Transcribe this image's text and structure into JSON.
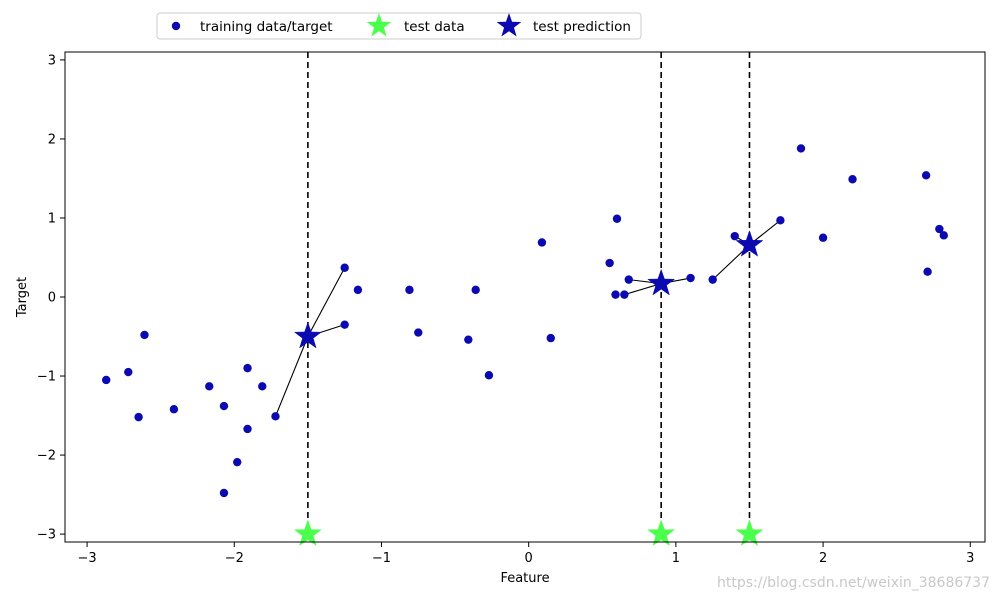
{
  "chart_data": {
    "type": "scatter",
    "xlabel": "Feature",
    "ylabel": "Target",
    "xlim": [
      -3.15,
      3.1
    ],
    "ylim": [
      -3.1,
      3.1
    ],
    "x_ticks": [
      {
        "value": -3,
        "label": "−3"
      },
      {
        "value": -2,
        "label": "−2"
      },
      {
        "value": -1,
        "label": "−1"
      },
      {
        "value": 0,
        "label": "0"
      },
      {
        "value": 1,
        "label": "1"
      },
      {
        "value": 2,
        "label": "2"
      },
      {
        "value": 3,
        "label": "3"
      }
    ],
    "y_ticks": [
      {
        "value": -3,
        "label": "−3"
      },
      {
        "value": -2,
        "label": "−2"
      },
      {
        "value": -1,
        "label": "−1"
      },
      {
        "value": 0,
        "label": "0"
      },
      {
        "value": 1,
        "label": "1"
      },
      {
        "value": 2,
        "label": "2"
      },
      {
        "value": 3,
        "label": "3"
      }
    ],
    "grid": false,
    "legend": {
      "placement": "top-center",
      "entries": [
        "training data/target",
        "test data",
        "test prediction"
      ]
    },
    "colors": {
      "training": "#0a0ab0",
      "test_data": "#4dff4d",
      "test_prediction": "#0a0ab0",
      "lines": "#000000"
    },
    "series": [
      {
        "name": "training data/target",
        "marker": "circle",
        "points": [
          [
            -2.87,
            -1.05
          ],
          [
            -2.72,
            -0.95
          ],
          [
            -2.65,
            -1.52
          ],
          [
            -2.61,
            -0.48
          ],
          [
            -2.41,
            -1.42
          ],
          [
            -2.17,
            -1.13
          ],
          [
            -2.07,
            -1.38
          ],
          [
            -2.07,
            -2.48
          ],
          [
            -1.98,
            -2.09
          ],
          [
            -1.91,
            -0.9
          ],
          [
            -1.91,
            -1.67
          ],
          [
            -1.81,
            -1.13
          ],
          [
            -1.72,
            -1.51
          ],
          [
            -1.25,
            0.37
          ],
          [
            -1.25,
            -0.35
          ],
          [
            -1.16,
            0.09
          ],
          [
            -0.81,
            0.09
          ],
          [
            -0.75,
            -0.45
          ],
          [
            -0.41,
            -0.54
          ],
          [
            -0.36,
            0.09
          ],
          [
            -0.27,
            -0.99
          ],
          [
            0.09,
            0.69
          ],
          [
            0.15,
            -0.52
          ],
          [
            0.55,
            0.43
          ],
          [
            0.59,
            0.03
          ],
          [
            0.6,
            0.99
          ],
          [
            0.65,
            0.03
          ],
          [
            0.68,
            0.22
          ],
          [
            1.1,
            0.24
          ],
          [
            1.25,
            0.22
          ],
          [
            1.4,
            0.77
          ],
          [
            1.71,
            0.97
          ],
          [
            1.85,
            1.88
          ],
          [
            2.0,
            0.75
          ],
          [
            2.2,
            1.49
          ],
          [
            2.7,
            1.54
          ],
          [
            2.71,
            0.32
          ],
          [
            2.79,
            0.86
          ],
          [
            2.82,
            0.78
          ]
        ]
      },
      {
        "name": "test data",
        "marker": "star",
        "points": [
          [
            -1.5,
            -3.0
          ],
          [
            0.9,
            -3.0
          ],
          [
            1.5,
            -3.0
          ]
        ]
      },
      {
        "name": "test prediction",
        "marker": "star",
        "points": [
          [
            -1.5,
            -0.5
          ],
          [
            0.9,
            0.17
          ],
          [
            1.5,
            0.66
          ]
        ]
      }
    ],
    "vertical_lines_x": [
      -1.5,
      0.9,
      1.5
    ],
    "neighbor_links": [
      {
        "from": [
          -1.5,
          -0.5
        ],
        "to": [
          [
            -1.25,
            0.37
          ],
          [
            -1.25,
            -0.35
          ],
          [
            -1.72,
            -1.51
          ]
        ]
      },
      {
        "from": [
          0.9,
          0.17
        ],
        "to": [
          [
            1.1,
            0.24
          ],
          [
            0.68,
            0.22
          ],
          [
            0.65,
            0.03
          ]
        ]
      },
      {
        "from": [
          1.5,
          0.66
        ],
        "to": [
          [
            1.4,
            0.77
          ],
          [
            1.71,
            0.97
          ],
          [
            1.25,
            0.22
          ]
        ]
      }
    ]
  },
  "watermark": "https://blog.csdn.net/weixin_38686737"
}
